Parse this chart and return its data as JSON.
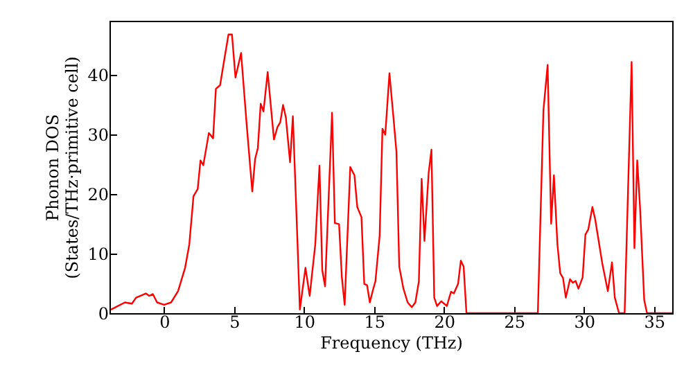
{
  "chart_data": {
    "type": "line",
    "xlabel": "Frequency (THz)",
    "ylabel": "Phonon DOS\n(States/THz·primitive cell)",
    "xlim": [
      -3.9,
      36.3
    ],
    "ylim": [
      0,
      49
    ],
    "xticks": [
      0,
      5,
      10,
      15,
      20,
      25,
      30,
      35
    ],
    "yticks": [
      0,
      10,
      20,
      30,
      40
    ],
    "grid": false,
    "marker": "none",
    "line_style": "solid",
    "series": [
      {
        "color": "#ff0000",
        "x": [
          -3.8,
          -2.8,
          -2.3,
          -2.0,
          -1.3,
          -1.06,
          -0.8,
          -0.5,
          0,
          0.5,
          1.0,
          1.5,
          1.8,
          2.1,
          2.4,
          2.6,
          2.8,
          3.2,
          3.5,
          3.7,
          4.0,
          4.3,
          4.6,
          4.85,
          5.1,
          5.5,
          5.9,
          6.3,
          6.5,
          6.7,
          6.9,
          7.1,
          7.4,
          7.85,
          8.1,
          8.3,
          8.5,
          8.7,
          9.0,
          9.2,
          9.5,
          9.7,
          10.1,
          10.4,
          10.8,
          11.1,
          11.3,
          11.5,
          12.0,
          12.2,
          12.5,
          12.7,
          12.9,
          13.3,
          13.6,
          13.8,
          14.1,
          14.3,
          14.5,
          14.7,
          14.9,
          15.1,
          15.4,
          15.6,
          15.8,
          16.1,
          16.4,
          16.6,
          16.8,
          17.1,
          17.4,
          17.7,
          17.95,
          18.2,
          18.4,
          18.6,
          18.9,
          19.1,
          19.3,
          19.5,
          19.8,
          20.2,
          20.5,
          20.7,
          21.0,
          21.2,
          21.4,
          21.6,
          26.7,
          27.1,
          27.4,
          27.65,
          27.85,
          28.1,
          28.3,
          28.5,
          28.7,
          29.0,
          29.2,
          29.4,
          29.6,
          29.9,
          30.1,
          30.3,
          30.6,
          30.8,
          31.3,
          31.7,
          32.0,
          32.2,
          32.5,
          32.9,
          33.4,
          33.6,
          33.8,
          34.0,
          34.3,
          34.5,
          36.3
        ],
        "values": [
          0.6,
          1.8,
          1.6,
          2.6,
          3.3,
          2.9,
          3.2,
          1.8,
          1.4,
          1.8,
          3.7,
          7.6,
          11.5,
          19.6,
          20.8,
          25.6,
          24.8,
          30.2,
          29.3,
          37.6,
          38.2,
          42.5,
          46.7,
          46.7,
          39.5,
          43.6,
          31.6,
          20.4,
          25.8,
          27.7,
          35.1,
          33.8,
          40.4,
          29.1,
          31.2,
          32.0,
          34.9,
          32.8,
          25.3,
          33.0,
          13.8,
          0.6,
          7.6,
          2.9,
          11.5,
          24.7,
          7.2,
          4.5,
          33.6,
          15.1,
          14.9,
          6.0,
          1.4,
          24.5,
          23.1,
          17.8,
          16.1,
          4.9,
          4.7,
          1.8,
          3.7,
          5.4,
          13.0,
          30.9,
          29.9,
          40.2,
          32.4,
          27.0,
          7.8,
          4.1,
          1.8,
          1.0,
          1.8,
          5.3,
          22.5,
          12.1,
          23.5,
          27.4,
          2.6,
          1.2,
          2.0,
          1.2,
          3.6,
          3.3,
          4.9,
          8.8,
          7.8,
          0,
          0,
          34.0,
          41.6,
          15.0,
          23.1,
          11.5,
          6.7,
          5.9,
          2.6,
          5.7,
          5.1,
          5.4,
          4.1,
          6.0,
          13.2,
          14.0,
          17.8,
          15.7,
          8.4,
          3.7,
          8.5,
          2.6,
          0,
          0,
          42.1,
          10.9,
          25.6,
          17.8,
          2.2,
          0,
          0
        ]
      }
    ]
  }
}
